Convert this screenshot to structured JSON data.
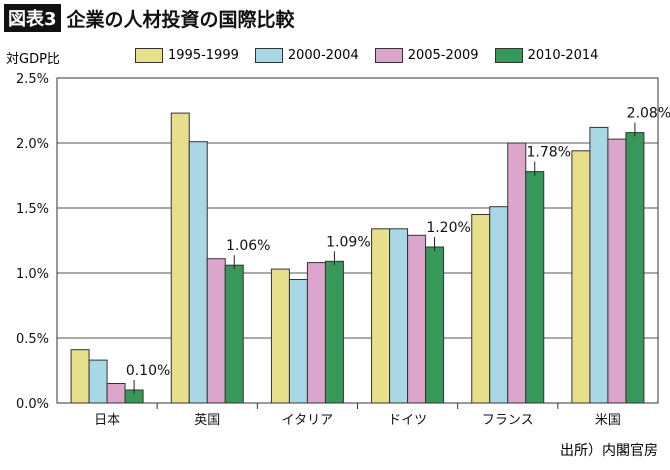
{
  "header": {
    "tag": "図表3",
    "title": "企業の人材投資の国際比較"
  },
  "source": "出所）内閣官房",
  "chart_data": {
    "type": "bar",
    "title": "企業の人材投資の国際比較",
    "ylabel": "対GDP比",
    "ylim": [
      0,
      2.5
    ],
    "yticks": [
      "0.0%",
      "0.5%",
      "1.0%",
      "1.5%",
      "2.0%",
      "2.5%"
    ],
    "grid": true,
    "legend": "top",
    "categories": [
      "日本",
      "英国",
      "イタリア",
      "ドイツ",
      "フランス",
      "米国"
    ],
    "series": [
      {
        "name": "1995-1999",
        "color": "#e8df8c",
        "values": [
          0.41,
          2.23,
          1.03,
          1.34,
          1.45,
          1.94
        ]
      },
      {
        "name": "2000-2004",
        "color": "#a8d8e6",
        "values": [
          0.33,
          2.01,
          0.95,
          1.34,
          1.51,
          2.12
        ]
      },
      {
        "name": "2005-2009",
        "color": "#dca6cc",
        "values": [
          0.15,
          1.11,
          1.08,
          1.29,
          2.0,
          2.03
        ]
      },
      {
        "name": "2010-2014",
        "color": "#37985a",
        "values": [
          0.1,
          1.06,
          1.09,
          1.2,
          1.78,
          2.08
        ]
      }
    ],
    "annotations": [
      "0.10%",
      "1.06%",
      "1.09%",
      "1.20%",
      "1.78%",
      "2.08%"
    ]
  }
}
